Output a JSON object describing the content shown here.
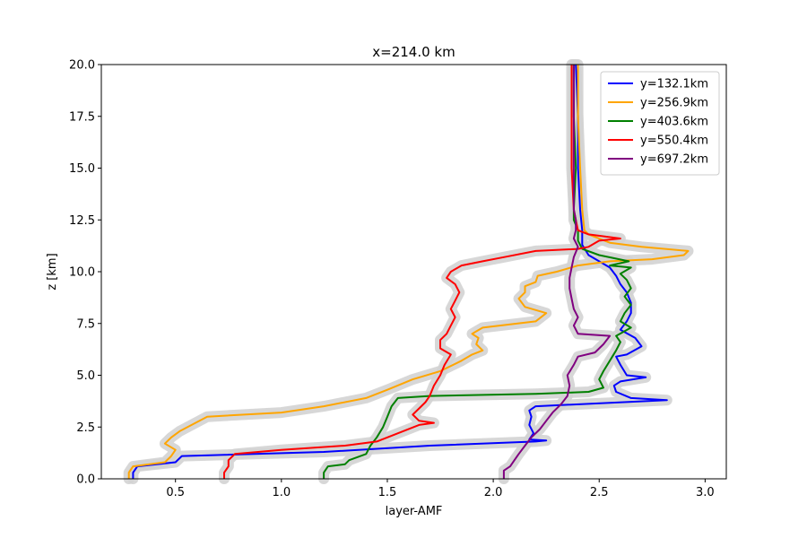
{
  "chart_data": {
    "type": "line",
    "title": "x=214.0 km",
    "xlabel": "layer-AMF",
    "ylabel": "z [km]",
    "xlim": [
      0.15,
      3.1
    ],
    "ylim": [
      0,
      20
    ],
    "xticks": [
      0.5,
      1.0,
      1.5,
      2.0,
      2.5,
      3.0
    ],
    "xtick_labels": [
      "0.5",
      "1.0",
      "1.5",
      "2.0",
      "2.5",
      "3.0"
    ],
    "yticks": [
      0,
      2.5,
      5,
      7.5,
      10,
      12.5,
      15,
      17.5,
      20
    ],
    "ytick_labels": [
      "0.0",
      "2.5",
      "5.0",
      "7.5",
      "10.0",
      "12.5",
      "15.0",
      "17.5",
      "20.0"
    ],
    "grid": false,
    "legend_position": "top-right",
    "uncertainty_band_color": "#d3d3d3",
    "series": [
      {
        "name": "y=132.1km",
        "color": "#0000ff",
        "points": [
          [
            0.3,
            0.0
          ],
          [
            0.3,
            0.3
          ],
          [
            0.32,
            0.6
          ],
          [
            0.5,
            0.8
          ],
          [
            0.53,
            1.1
          ],
          [
            1.2,
            1.3
          ],
          [
            1.7,
            1.6
          ],
          [
            2.2,
            1.8
          ],
          [
            2.25,
            1.85
          ],
          [
            2.17,
            1.9
          ],
          [
            2.19,
            2.2
          ],
          [
            2.17,
            2.6
          ],
          [
            2.18,
            3.0
          ],
          [
            2.17,
            3.3
          ],
          [
            2.2,
            3.5
          ],
          [
            2.82,
            3.8
          ],
          [
            2.65,
            3.9
          ],
          [
            2.58,
            4.2
          ],
          [
            2.57,
            4.5
          ],
          [
            2.6,
            4.7
          ],
          [
            2.72,
            4.9
          ],
          [
            2.63,
            5.0
          ],
          [
            2.6,
            5.5
          ],
          [
            2.58,
            5.9
          ],
          [
            2.63,
            6.0
          ],
          [
            2.7,
            6.4
          ],
          [
            2.67,
            6.8
          ],
          [
            2.6,
            7.2
          ],
          [
            2.63,
            7.6
          ],
          [
            2.65,
            8.0
          ],
          [
            2.65,
            8.5
          ],
          [
            2.63,
            9.0
          ],
          [
            2.6,
            9.4
          ],
          [
            2.58,
            9.8
          ],
          [
            2.55,
            10.2
          ],
          [
            2.5,
            10.5
          ],
          [
            2.45,
            10.8
          ],
          [
            2.42,
            11.3
          ],
          [
            2.42,
            12.0
          ],
          [
            2.41,
            13.0
          ],
          [
            2.4,
            15.0
          ],
          [
            2.4,
            17.5
          ],
          [
            2.39,
            20.0
          ]
        ]
      },
      {
        "name": "y=256.9km",
        "color": "#ffa500",
        "points": [
          [
            0.28,
            0.0
          ],
          [
            0.28,
            0.3
          ],
          [
            0.3,
            0.6
          ],
          [
            0.45,
            0.8
          ],
          [
            0.48,
            1.1
          ],
          [
            0.5,
            1.4
          ],
          [
            0.45,
            1.7
          ],
          [
            0.48,
            2.0
          ],
          [
            0.52,
            2.3
          ],
          [
            0.65,
            3.0
          ],
          [
            1.0,
            3.2
          ],
          [
            1.2,
            3.5
          ],
          [
            1.4,
            3.9
          ],
          [
            1.5,
            4.3
          ],
          [
            1.62,
            4.8
          ],
          [
            1.75,
            5.2
          ],
          [
            1.85,
            5.7
          ],
          [
            1.9,
            6.0
          ],
          [
            1.95,
            6.2
          ],
          [
            1.92,
            6.5
          ],
          [
            1.93,
            6.8
          ],
          [
            1.9,
            7.0
          ],
          [
            1.95,
            7.3
          ],
          [
            2.2,
            7.6
          ],
          [
            2.25,
            8.0
          ],
          [
            2.15,
            8.3
          ],
          [
            2.12,
            8.7
          ],
          [
            2.15,
            9.0
          ],
          [
            2.15,
            9.3
          ],
          [
            2.2,
            9.5
          ],
          [
            2.21,
            9.8
          ],
          [
            2.3,
            10.0
          ],
          [
            2.4,
            10.3
          ],
          [
            2.55,
            10.5
          ],
          [
            2.75,
            10.6
          ],
          [
            2.9,
            10.8
          ],
          [
            2.92,
            11.0
          ],
          [
            2.7,
            11.2
          ],
          [
            2.55,
            11.4
          ],
          [
            2.45,
            11.8
          ],
          [
            2.43,
            12.0
          ],
          [
            2.42,
            13.0
          ],
          [
            2.41,
            15.0
          ],
          [
            2.4,
            17.5
          ],
          [
            2.4,
            20.0
          ]
        ]
      },
      {
        "name": "y=403.6km",
        "color": "#008000",
        "points": [
          [
            1.2,
            0.0
          ],
          [
            1.2,
            0.3
          ],
          [
            1.22,
            0.6
          ],
          [
            1.3,
            0.7
          ],
          [
            1.32,
            0.9
          ],
          [
            1.4,
            1.2
          ],
          [
            1.42,
            1.6
          ],
          [
            1.45,
            2.0
          ],
          [
            1.48,
            2.5
          ],
          [
            1.5,
            3.0
          ],
          [
            1.52,
            3.5
          ],
          [
            1.55,
            3.9
          ],
          [
            1.7,
            4.0
          ],
          [
            2.2,
            4.1
          ],
          [
            2.45,
            4.2
          ],
          [
            2.52,
            4.4
          ],
          [
            2.5,
            4.8
          ],
          [
            2.52,
            5.2
          ],
          [
            2.55,
            5.7
          ],
          [
            2.58,
            6.2
          ],
          [
            2.6,
            6.6
          ],
          [
            2.58,
            6.9
          ],
          [
            2.65,
            7.3
          ],
          [
            2.6,
            7.6
          ],
          [
            2.62,
            8.0
          ],
          [
            2.65,
            8.4
          ],
          [
            2.62,
            8.8
          ],
          [
            2.65,
            9.2
          ],
          [
            2.63,
            9.6
          ],
          [
            2.6,
            9.9
          ],
          [
            2.65,
            10.2
          ],
          [
            2.55,
            10.3
          ],
          [
            2.64,
            10.5
          ],
          [
            2.5,
            10.8
          ],
          [
            2.42,
            11.1
          ],
          [
            2.4,
            11.5
          ],
          [
            2.4,
            12.0
          ],
          [
            2.38,
            12.5
          ],
          [
            2.38,
            13.0
          ],
          [
            2.39,
            15.0
          ],
          [
            2.38,
            17.5
          ],
          [
            2.38,
            20.0
          ]
        ]
      },
      {
        "name": "y=550.4km",
        "color": "#ff0000",
        "points": [
          [
            0.73,
            0.0
          ],
          [
            0.73,
            0.3
          ],
          [
            0.75,
            0.6
          ],
          [
            0.75,
            0.9
          ],
          [
            0.78,
            1.2
          ],
          [
            1.0,
            1.4
          ],
          [
            1.3,
            1.6
          ],
          [
            1.45,
            1.8
          ],
          [
            1.55,
            2.2
          ],
          [
            1.65,
            2.6
          ],
          [
            1.72,
            2.7
          ],
          [
            1.65,
            2.8
          ],
          [
            1.62,
            3.1
          ],
          [
            1.65,
            3.4
          ],
          [
            1.68,
            3.7
          ],
          [
            1.7,
            4.0
          ],
          [
            1.72,
            4.5
          ],
          [
            1.75,
            5.0
          ],
          [
            1.77,
            5.5
          ],
          [
            1.8,
            6.0
          ],
          [
            1.75,
            6.3
          ],
          [
            1.75,
            6.7
          ],
          [
            1.78,
            7.0
          ],
          [
            1.8,
            7.4
          ],
          [
            1.82,
            7.8
          ],
          [
            1.8,
            8.2
          ],
          [
            1.82,
            8.6
          ],
          [
            1.84,
            9.0
          ],
          [
            1.82,
            9.4
          ],
          [
            1.78,
            9.7
          ],
          [
            1.8,
            10.0
          ],
          [
            1.85,
            10.3
          ],
          [
            1.95,
            10.5
          ],
          [
            2.05,
            10.7
          ],
          [
            2.2,
            11.0
          ],
          [
            2.4,
            11.1
          ],
          [
            2.45,
            11.2
          ],
          [
            2.5,
            11.5
          ],
          [
            2.6,
            11.6
          ],
          [
            2.45,
            11.8
          ],
          [
            2.4,
            12.0
          ],
          [
            2.39,
            12.5
          ],
          [
            2.38,
            13.0
          ],
          [
            2.37,
            15.0
          ],
          [
            2.37,
            17.5
          ],
          [
            2.37,
            20.0
          ]
        ]
      },
      {
        "name": "y=697.2km",
        "color": "#800080",
        "points": [
          [
            2.05,
            0.0
          ],
          [
            2.05,
            0.4
          ],
          [
            2.08,
            0.6
          ],
          [
            2.1,
            0.9
          ],
          [
            2.12,
            1.2
          ],
          [
            2.15,
            1.6
          ],
          [
            2.18,
            2.0
          ],
          [
            2.22,
            2.4
          ],
          [
            2.25,
            2.8
          ],
          [
            2.28,
            3.2
          ],
          [
            2.32,
            3.6
          ],
          [
            2.35,
            4.0
          ],
          [
            2.36,
            4.5
          ],
          [
            2.35,
            5.0
          ],
          [
            2.38,
            5.5
          ],
          [
            2.4,
            5.9
          ],
          [
            2.48,
            6.1
          ],
          [
            2.52,
            6.5
          ],
          [
            2.55,
            6.9
          ],
          [
            2.4,
            7.0
          ],
          [
            2.38,
            7.4
          ],
          [
            2.4,
            7.8
          ],
          [
            2.38,
            8.2
          ],
          [
            2.37,
            8.7
          ],
          [
            2.36,
            9.2
          ],
          [
            2.36,
            9.7
          ],
          [
            2.37,
            10.2
          ],
          [
            2.38,
            10.7
          ],
          [
            2.4,
            11.2
          ],
          [
            2.38,
            11.6
          ],
          [
            2.39,
            12.0
          ],
          [
            2.39,
            12.5
          ],
          [
            2.38,
            13.0
          ],
          [
            2.38,
            15.0
          ],
          [
            2.38,
            17.5
          ],
          [
            2.38,
            20.0
          ]
        ]
      }
    ]
  }
}
